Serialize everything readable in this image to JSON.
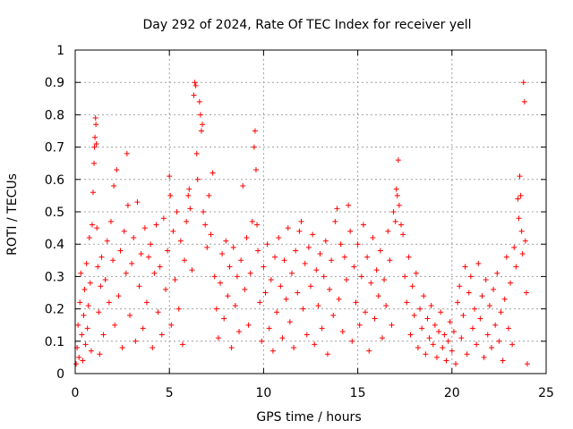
{
  "chart_data": {
    "type": "scatter",
    "title": "Day 292 of 2024, Rate Of TEC Index for receiver yell",
    "xlabel": "GPS time / hours",
    "ylabel": "ROTI / TECUs",
    "xlim": [
      0,
      25
    ],
    "ylim": [
      0,
      1
    ],
    "x_ticks": [
      0,
      5,
      10,
      15,
      20,
      25
    ],
    "y_ticks": [
      0,
      0.1,
      0.2,
      0.3,
      0.4,
      0.5,
      0.6,
      0.7,
      0.8,
      0.9,
      1
    ],
    "x_tick_labels": [
      "0",
      "5",
      "10",
      "15",
      "20",
      "25"
    ],
    "y_tick_labels": [
      "0",
      "0.1",
      "0.2",
      "0.3",
      "0.4",
      "0.5",
      "0.6",
      "0.7",
      "0.8",
      "0.9",
      "1"
    ],
    "grid": true,
    "marker": "+",
    "color": "#ff0000",
    "series": [
      {
        "name": "ROTI",
        "points": [
          [
            0.05,
            0.03
          ],
          [
            0.1,
            0.08
          ],
          [
            0.15,
            0.15
          ],
          [
            0.2,
            0.05
          ],
          [
            0.25,
            0.22
          ],
          [
            0.3,
            0.31
          ],
          [
            0.35,
            0.12
          ],
          [
            0.4,
            0.04
          ],
          [
            0.45,
            0.18
          ],
          [
            0.5,
            0.26
          ],
          [
            0.55,
            0.09
          ],
          [
            0.6,
            0.34
          ],
          [
            0.65,
            0.14
          ],
          [
            0.7,
            0.21
          ],
          [
            0.75,
            0.42
          ],
          [
            0.8,
            0.28
          ],
          [
            0.85,
            0.07
          ],
          [
            0.9,
            0.46
          ],
          [
            0.95,
            0.56
          ],
          [
            1.0,
            0.65
          ],
          [
            1.02,
            0.7
          ],
          [
            1.05,
            0.73
          ],
          [
            1.08,
            0.79
          ],
          [
            1.1,
            0.77
          ],
          [
            1.12,
            0.71
          ],
          [
            1.15,
            0.45
          ],
          [
            1.2,
            0.33
          ],
          [
            1.25,
            0.19
          ],
          [
            1.3,
            0.06
          ],
          [
            1.35,
            0.27
          ],
          [
            1.4,
            0.36
          ],
          [
            1.5,
            0.12
          ],
          [
            1.6,
            0.29
          ],
          [
            1.7,
            0.41
          ],
          [
            1.8,
            0.22
          ],
          [
            1.9,
            0.47
          ],
          [
            2.0,
            0.35
          ],
          [
            2.05,
            0.58
          ],
          [
            2.1,
            0.15
          ],
          [
            2.2,
            0.63
          ],
          [
            2.3,
            0.24
          ],
          [
            2.4,
            0.38
          ],
          [
            2.5,
            0.08
          ],
          [
            2.6,
            0.44
          ],
          [
            2.7,
            0.31
          ],
          [
            2.75,
            0.68
          ],
          [
            2.8,
            0.52
          ],
          [
            2.9,
            0.18
          ],
          [
            3.0,
            0.34
          ],
          [
            3.1,
            0.42
          ],
          [
            3.2,
            0.1
          ],
          [
            3.3,
            0.53
          ],
          [
            3.4,
            0.27
          ],
          [
            3.5,
            0.37
          ],
          [
            3.6,
            0.14
          ],
          [
            3.7,
            0.45
          ],
          [
            3.8,
            0.22
          ],
          [
            3.9,
            0.36
          ],
          [
            4.0,
            0.4
          ],
          [
            4.1,
            0.08
          ],
          [
            4.2,
            0.31
          ],
          [
            4.3,
            0.46
          ],
          [
            4.4,
            0.19
          ],
          [
            4.5,
            0.33
          ],
          [
            4.6,
            0.12
          ],
          [
            4.7,
            0.48
          ],
          [
            4.8,
            0.26
          ],
          [
            4.9,
            0.38
          ],
          [
            5.0,
            0.61
          ],
          [
            5.05,
            0.55
          ],
          [
            5.1,
            0.15
          ],
          [
            5.2,
            0.44
          ],
          [
            5.3,
            0.29
          ],
          [
            5.4,
            0.5
          ],
          [
            5.5,
            0.2
          ],
          [
            5.6,
            0.41
          ],
          [
            5.7,
            0.09
          ],
          [
            5.8,
            0.35
          ],
          [
            5.9,
            0.47
          ],
          [
            6.0,
            0.55
          ],
          [
            6.05,
            0.57
          ],
          [
            6.1,
            0.51
          ],
          [
            6.2,
            0.32
          ],
          [
            6.3,
            0.86
          ],
          [
            6.35,
            0.9
          ],
          [
            6.4,
            0.89
          ],
          [
            6.45,
            0.68
          ],
          [
            6.5,
            0.6
          ],
          [
            6.6,
            0.84
          ],
          [
            6.65,
            0.8
          ],
          [
            6.7,
            0.75
          ],
          [
            6.75,
            0.77
          ],
          [
            6.8,
            0.5
          ],
          [
            6.9,
            0.46
          ],
          [
            7.0,
            0.39
          ],
          [
            7.1,
            0.55
          ],
          [
            7.2,
            0.43
          ],
          [
            7.3,
            0.62
          ],
          [
            7.4,
            0.3
          ],
          [
            7.5,
            0.2
          ],
          [
            7.6,
            0.11
          ],
          [
            7.7,
            0.28
          ],
          [
            7.8,
            0.37
          ],
          [
            7.9,
            0.17
          ],
          [
            8.0,
            0.41
          ],
          [
            8.1,
            0.24
          ],
          [
            8.2,
            0.33
          ],
          [
            8.3,
            0.08
          ],
          [
            8.4,
            0.39
          ],
          [
            8.5,
            0.21
          ],
          [
            8.6,
            0.3
          ],
          [
            8.7,
            0.13
          ],
          [
            8.8,
            0.35
          ],
          [
            8.9,
            0.58
          ],
          [
            9.0,
            0.26
          ],
          [
            9.1,
            0.42
          ],
          [
            9.2,
            0.15
          ],
          [
            9.3,
            0.31
          ],
          [
            9.4,
            0.47
          ],
          [
            9.5,
            0.7
          ],
          [
            9.55,
            0.75
          ],
          [
            9.6,
            0.63
          ],
          [
            9.65,
            0.46
          ],
          [
            9.7,
            0.38
          ],
          [
            9.8,
            0.22
          ],
          [
            9.9,
            0.1
          ],
          [
            10.0,
            0.33
          ],
          [
            10.1,
            0.25
          ],
          [
            10.2,
            0.4
          ],
          [
            10.3,
            0.14
          ],
          [
            10.4,
            0.29
          ],
          [
            10.5,
            0.07
          ],
          [
            10.6,
            0.36
          ],
          [
            10.7,
            0.19
          ],
          [
            10.8,
            0.42
          ],
          [
            10.9,
            0.27
          ],
          [
            11.0,
            0.11
          ],
          [
            11.1,
            0.35
          ],
          [
            11.2,
            0.23
          ],
          [
            11.3,
            0.45
          ],
          [
            11.4,
            0.16
          ],
          [
            11.5,
            0.31
          ],
          [
            11.6,
            0.08
          ],
          [
            11.7,
            0.38
          ],
          [
            11.8,
            0.25
          ],
          [
            11.9,
            0.44
          ],
          [
            12.0,
            0.47
          ],
          [
            12.1,
            0.2
          ],
          [
            12.2,
            0.34
          ],
          [
            12.3,
            0.12
          ],
          [
            12.4,
            0.39
          ],
          [
            12.5,
            0.27
          ],
          [
            12.6,
            0.43
          ],
          [
            12.7,
            0.09
          ],
          [
            12.8,
            0.32
          ],
          [
            12.9,
            0.21
          ],
          [
            13.0,
            0.37
          ],
          [
            13.1,
            0.14
          ],
          [
            13.2,
            0.3
          ],
          [
            13.3,
            0.41
          ],
          [
            13.4,
            0.06
          ],
          [
            13.5,
            0.26
          ],
          [
            13.6,
            0.35
          ],
          [
            13.7,
            0.18
          ],
          [
            13.8,
            0.47
          ],
          [
            13.9,
            0.51
          ],
          [
            14.0,
            0.23
          ],
          [
            14.1,
            0.4
          ],
          [
            14.2,
            0.13
          ],
          [
            14.3,
            0.36
          ],
          [
            14.4,
            0.29
          ],
          [
            14.5,
            0.52
          ],
          [
            14.6,
            0.44
          ],
          [
            14.7,
            0.1
          ],
          [
            14.8,
            0.33
          ],
          [
            14.9,
            0.22
          ],
          [
            15.0,
            0.4
          ],
          [
            15.1,
            0.15
          ],
          [
            15.2,
            0.3
          ],
          [
            15.3,
            0.46
          ],
          [
            15.4,
            0.19
          ],
          [
            15.5,
            0.36
          ],
          [
            15.6,
            0.07
          ],
          [
            15.7,
            0.28
          ],
          [
            15.8,
            0.42
          ],
          [
            15.9,
            0.17
          ],
          [
            16.0,
            0.32
          ],
          [
            16.1,
            0.24
          ],
          [
            16.2,
            0.38
          ],
          [
            16.3,
            0.11
          ],
          [
            16.4,
            0.29
          ],
          [
            16.5,
            0.21
          ],
          [
            16.6,
            0.44
          ],
          [
            16.7,
            0.35
          ],
          [
            16.8,
            0.15
          ],
          [
            16.9,
            0.5
          ],
          [
            17.0,
            0.47
          ],
          [
            17.05,
            0.57
          ],
          [
            17.1,
            0.55
          ],
          [
            17.15,
            0.66
          ],
          [
            17.2,
            0.52
          ],
          [
            17.3,
            0.46
          ],
          [
            17.4,
            0.43
          ],
          [
            17.5,
            0.3
          ],
          [
            17.6,
            0.22
          ],
          [
            17.7,
            0.36
          ],
          [
            17.8,
            0.12
          ],
          [
            17.9,
            0.27
          ],
          [
            18.0,
            0.18
          ],
          [
            18.1,
            0.31
          ],
          [
            18.2,
            0.08
          ],
          [
            18.3,
            0.2
          ],
          [
            18.4,
            0.14
          ],
          [
            18.5,
            0.24
          ],
          [
            18.6,
            0.06
          ],
          [
            18.7,
            0.17
          ],
          [
            18.8,
            0.11
          ],
          [
            18.9,
            0.21
          ],
          [
            19.0,
            0.09
          ],
          [
            19.1,
            0.15
          ],
          [
            19.2,
            0.05
          ],
          [
            19.3,
            0.13
          ],
          [
            19.4,
            0.19
          ],
          [
            19.5,
            0.08
          ],
          [
            19.6,
            0.12
          ],
          [
            19.7,
            0.04
          ],
          [
            19.8,
            0.1
          ],
          [
            19.9,
            0.16
          ],
          [
            20.0,
            0.07
          ],
          [
            20.1,
            0.13
          ],
          [
            20.2,
            0.03
          ],
          [
            20.3,
            0.22
          ],
          [
            20.4,
            0.27
          ],
          [
            20.5,
            0.11
          ],
          [
            20.6,
            0.18
          ],
          [
            20.7,
            0.33
          ],
          [
            20.8,
            0.06
          ],
          [
            20.9,
            0.25
          ],
          [
            21.0,
            0.3
          ],
          [
            21.1,
            0.14
          ],
          [
            21.2,
            0.2
          ],
          [
            21.3,
            0.09
          ],
          [
            21.4,
            0.34
          ],
          [
            21.5,
            0.17
          ],
          [
            21.6,
            0.24
          ],
          [
            21.7,
            0.05
          ],
          [
            21.8,
            0.29
          ],
          [
            21.9,
            0.12
          ],
          [
            22.0,
            0.21
          ],
          [
            22.1,
            0.08
          ],
          [
            22.2,
            0.26
          ],
          [
            22.3,
            0.15
          ],
          [
            22.4,
            0.31
          ],
          [
            22.5,
            0.1
          ],
          [
            22.6,
            0.19
          ],
          [
            22.7,
            0.04
          ],
          [
            22.8,
            0.23
          ],
          [
            22.9,
            0.36
          ],
          [
            23.0,
            0.14
          ],
          [
            23.1,
            0.28
          ],
          [
            23.2,
            0.09
          ],
          [
            23.3,
            0.39
          ],
          [
            23.4,
            0.33
          ],
          [
            23.5,
            0.54
          ],
          [
            23.55,
            0.48
          ],
          [
            23.6,
            0.61
          ],
          [
            23.65,
            0.55
          ],
          [
            23.7,
            0.44
          ],
          [
            23.75,
            0.37
          ],
          [
            23.8,
            0.9
          ],
          [
            23.85,
            0.84
          ],
          [
            23.9,
            0.41
          ],
          [
            23.95,
            0.25
          ],
          [
            24.0,
            0.03
          ]
        ]
      }
    ]
  }
}
